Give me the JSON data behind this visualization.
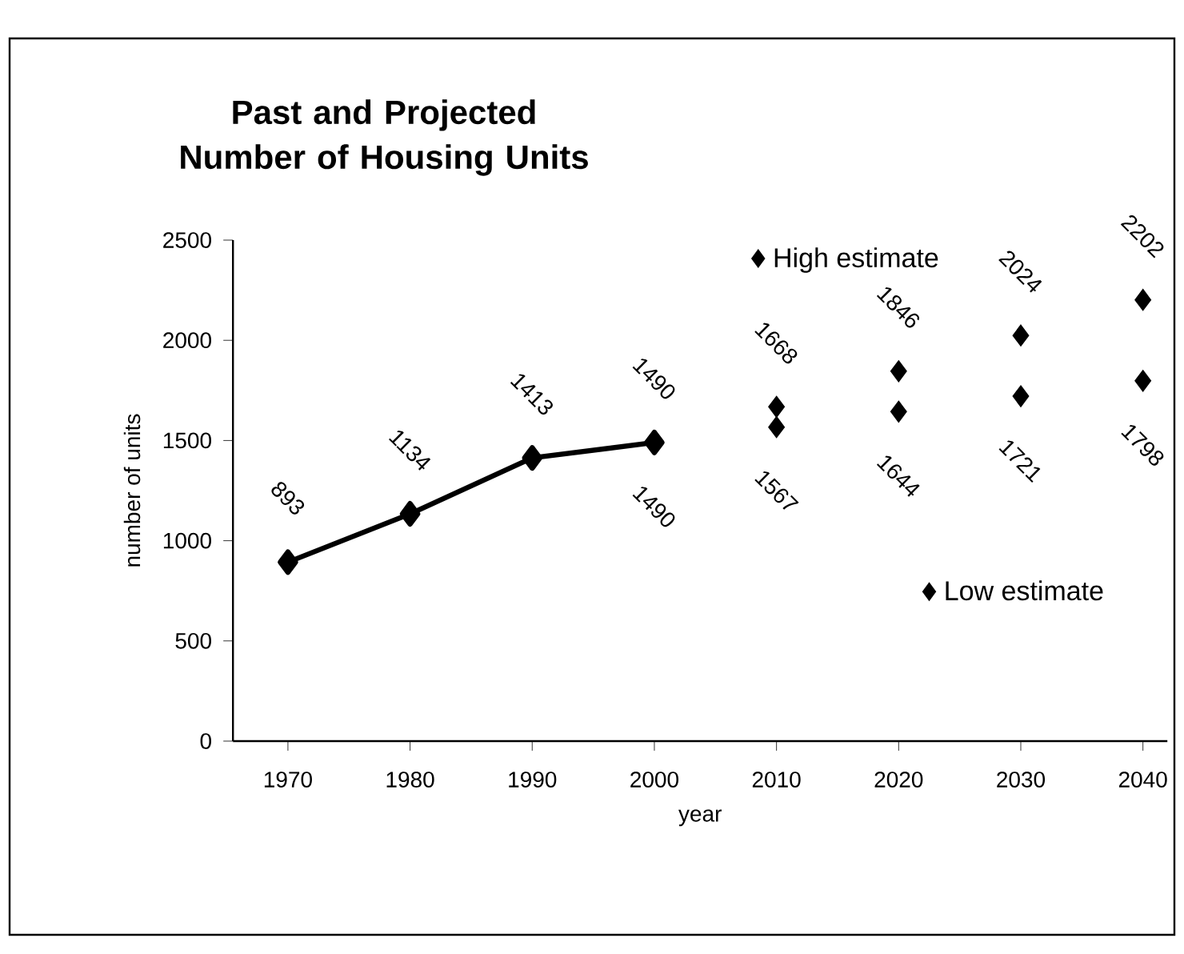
{
  "chart_data": {
    "type": "line",
    "title": "Past and Projected Number of Housing Units",
    "xlabel": "year",
    "ylabel": "number of units",
    "categories": [
      "1970",
      "1980",
      "1990",
      "2000",
      "2010",
      "2020",
      "2030",
      "2040"
    ],
    "ylim": [
      0,
      2500
    ],
    "yticks": [
      0,
      500,
      1000,
      1500,
      2000,
      2500
    ],
    "grid": false,
    "legend": "right",
    "marker": "diamond",
    "series": [
      {
        "color": "#000000",
        "values": [
          893,
          1134,
          1413,
          1490,
          null,
          null,
          null,
          null
        ],
        "value_labels": [
          "893",
          "1134",
          "1413",
          null,
          null,
          null,
          null,
          null
        ]
      },
      {
        "type": "scatter",
        "name": "High estimate",
        "color": "#000000",
        "values": [
          null,
          null,
          null,
          1490,
          1668,
          1846,
          2024,
          2202
        ],
        "value_labels": [
          null,
          null,
          null,
          "1490",
          "1668",
          "1846",
          "2024",
          "2202"
        ]
      },
      {
        "type": "scatter",
        "name": "Low estimate",
        "color": "#000000",
        "values": [
          null,
          null,
          null,
          1490,
          1567,
          1644,
          1721,
          1798
        ],
        "value_labels": [
          null,
          null,
          null,
          "1490",
          "1567",
          "1644",
          "1721",
          "1798"
        ]
      }
    ]
  }
}
